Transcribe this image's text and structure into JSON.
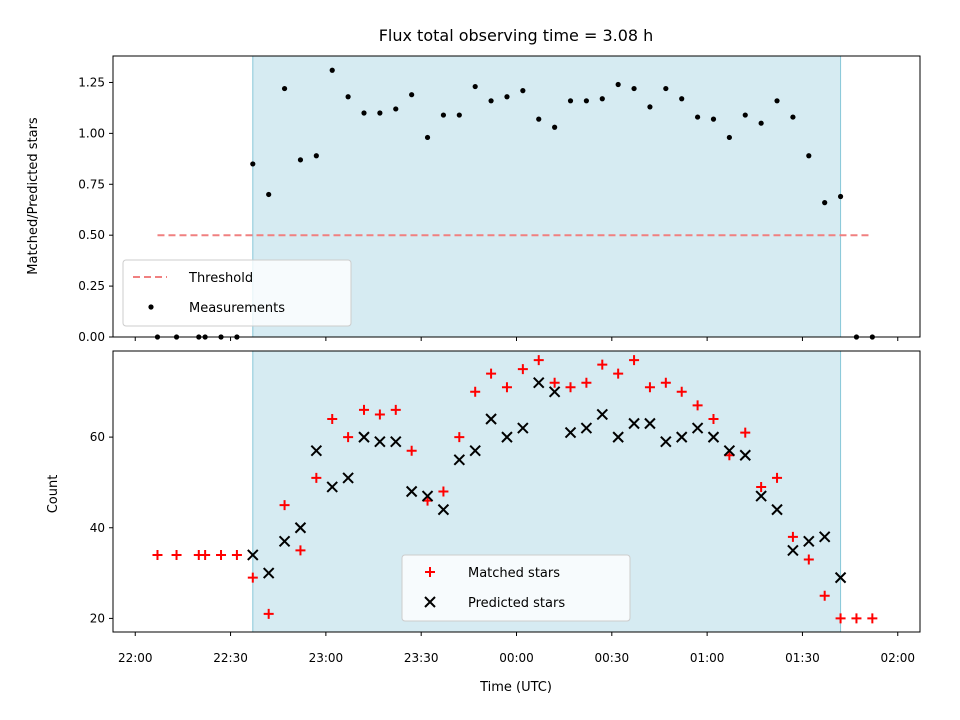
{
  "chart_data": [
    {
      "type": "scatter",
      "title": "Flux total observing time = 3.08 h",
      "xlabel": "",
      "ylabel": "Matched/Predicted stars",
      "ylim": [
        0,
        1.38
      ],
      "yticks": [
        "0.00",
        "0.25",
        "0.50",
        "0.75",
        "1.00",
        "1.25"
      ],
      "xlim": [
        "22:00",
        "02:00"
      ],
      "shaded_interval": [
        "22:37",
        "01:42"
      ],
      "threshold": {
        "name": "Threshold",
        "value": 0.5,
        "x_start": "22:07",
        "x_end": "01:52",
        "color": "#f08080"
      },
      "legend": {
        "position": "lower-left",
        "entries": [
          "Threshold",
          "Measurements"
        ]
      },
      "series": [
        {
          "name": "Measurements",
          "marker": "dot",
          "color": "#000000",
          "points": [
            [
              "22:07",
              0.0
            ],
            [
              "22:13",
              0.0
            ],
            [
              "22:20",
              0.0
            ],
            [
              "22:22",
              0.0
            ],
            [
              "22:27",
              0.0
            ],
            [
              "22:32",
              0.0
            ],
            [
              "22:37",
              0.85
            ],
            [
              "22:42",
              0.7
            ],
            [
              "22:47",
              1.22
            ],
            [
              "22:52",
              0.87
            ],
            [
              "22:57",
              0.89
            ],
            [
              "23:02",
              1.31
            ],
            [
              "23:07",
              1.18
            ],
            [
              "23:12",
              1.1
            ],
            [
              "23:17",
              1.1
            ],
            [
              "23:22",
              1.12
            ],
            [
              "23:27",
              1.19
            ],
            [
              "23:32",
              0.98
            ],
            [
              "23:37",
              1.09
            ],
            [
              "23:42",
              1.09
            ],
            [
              "23:47",
              1.23
            ],
            [
              "23:52",
              1.16
            ],
            [
              "23:57",
              1.18
            ],
            [
              "00:02",
              1.21
            ],
            [
              "00:07",
              1.07
            ],
            [
              "00:12",
              1.03
            ],
            [
              "00:17",
              1.16
            ],
            [
              "00:22",
              1.16
            ],
            [
              "00:27",
              1.17
            ],
            [
              "00:32",
              1.24
            ],
            [
              "00:37",
              1.22
            ],
            [
              "00:42",
              1.13
            ],
            [
              "00:47",
              1.22
            ],
            [
              "00:52",
              1.17
            ],
            [
              "00:57",
              1.08
            ],
            [
              "01:02",
              1.07
            ],
            [
              "01:07",
              0.98
            ],
            [
              "01:12",
              1.09
            ],
            [
              "01:17",
              1.05
            ],
            [
              "01:22",
              1.16
            ],
            [
              "01:27",
              1.08
            ],
            [
              "01:32",
              0.89
            ],
            [
              "01:37",
              0.66
            ],
            [
              "01:42",
              0.69
            ],
            [
              "01:47",
              0.0
            ],
            [
              "01:52",
              0.0
            ]
          ]
        }
      ]
    },
    {
      "type": "scatter",
      "title": "",
      "xlabel": "Time (UTC)",
      "ylabel": "Count",
      "ylim": [
        17,
        79
      ],
      "yticks": [
        "20",
        "40",
        "60"
      ],
      "xlim": [
        "22:00",
        "02:00"
      ],
      "xticks": [
        "22:00",
        "22:30",
        "23:00",
        "23:30",
        "00:00",
        "00:30",
        "01:00",
        "01:30",
        "02:00"
      ],
      "shaded_interval": [
        "22:37",
        "01:42"
      ],
      "legend": {
        "position": "lower-center",
        "entries": [
          "Matched stars",
          "Predicted stars"
        ]
      },
      "series": [
        {
          "name": "Matched stars",
          "marker": "plus",
          "color": "#ff0000",
          "points": [
            [
              "22:07",
              34
            ],
            [
              "22:13",
              34
            ],
            [
              "22:20",
              34
            ],
            [
              "22:22",
              34
            ],
            [
              "22:27",
              34
            ],
            [
              "22:32",
              34
            ],
            [
              "22:37",
              29
            ],
            [
              "22:42",
              21
            ],
            [
              "22:47",
              45
            ],
            [
              "22:52",
              35
            ],
            [
              "22:57",
              51
            ],
            [
              "23:02",
              64
            ],
            [
              "23:07",
              60
            ],
            [
              "23:12",
              66
            ],
            [
              "23:17",
              65
            ],
            [
              "23:22",
              66
            ],
            [
              "23:27",
              57
            ],
            [
              "23:32",
              46
            ],
            [
              "23:37",
              48
            ],
            [
              "23:42",
              60
            ],
            [
              "23:47",
              70
            ],
            [
              "23:52",
              74
            ],
            [
              "23:57",
              71
            ],
            [
              "00:02",
              75
            ],
            [
              "00:07",
              77
            ],
            [
              "00:12",
              72
            ],
            [
              "00:17",
              71
            ],
            [
              "00:22",
              72
            ],
            [
              "00:27",
              76
            ],
            [
              "00:32",
              74
            ],
            [
              "00:37",
              77
            ],
            [
              "00:42",
              71
            ],
            [
              "00:47",
              72
            ],
            [
              "00:52",
              70
            ],
            [
              "00:57",
              67
            ],
            [
              "01:02",
              64
            ],
            [
              "01:07",
              56
            ],
            [
              "01:12",
              61
            ],
            [
              "01:17",
              49
            ],
            [
              "01:22",
              51
            ],
            [
              "01:27",
              38
            ],
            [
              "01:32",
              33
            ],
            [
              "01:37",
              25
            ],
            [
              "01:42",
              20
            ],
            [
              "01:47",
              20
            ],
            [
              "01:52",
              20
            ]
          ]
        },
        {
          "name": "Predicted stars",
          "marker": "x",
          "color": "#000000",
          "points": [
            [
              "22:37",
              34
            ],
            [
              "22:42",
              30
            ],
            [
              "22:47",
              37
            ],
            [
              "22:52",
              40
            ],
            [
              "22:57",
              57
            ],
            [
              "23:02",
              49
            ],
            [
              "23:07",
              51
            ],
            [
              "23:12",
              60
            ],
            [
              "23:17",
              59
            ],
            [
              "23:22",
              59
            ],
            [
              "23:27",
              48
            ],
            [
              "23:32",
              47
            ],
            [
              "23:37",
              44
            ],
            [
              "23:42",
              55
            ],
            [
              "23:47",
              57
            ],
            [
              "23:52",
              64
            ],
            [
              "23:57",
              60
            ],
            [
              "00:02",
              62
            ],
            [
              "00:07",
              72
            ],
            [
              "00:12",
              70
            ],
            [
              "00:17",
              61
            ],
            [
              "00:22",
              62
            ],
            [
              "00:27",
              65
            ],
            [
              "00:32",
              60
            ],
            [
              "00:37",
              63
            ],
            [
              "00:42",
              63
            ],
            [
              "00:47",
              59
            ],
            [
              "00:52",
              60
            ],
            [
              "00:57",
              62
            ],
            [
              "01:02",
              60
            ],
            [
              "01:07",
              57
            ],
            [
              "01:12",
              56
            ],
            [
              "01:17",
              47
            ],
            [
              "01:22",
              44
            ],
            [
              "01:27",
              35
            ],
            [
              "01:32",
              37
            ],
            [
              "01:37",
              38
            ],
            [
              "01:42",
              29
            ]
          ]
        }
      ]
    }
  ]
}
